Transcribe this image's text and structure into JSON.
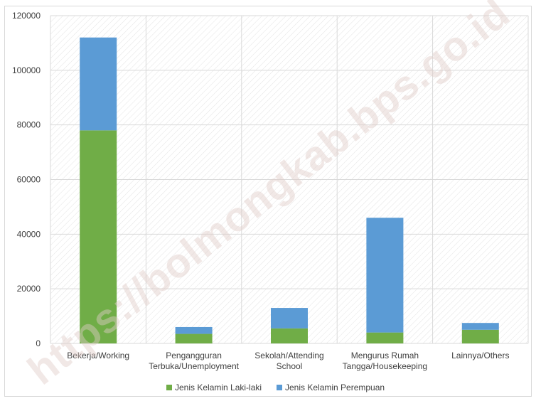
{
  "watermark": "https://bolmongkab.bps.go.id",
  "colors": {
    "male": "#70AD47",
    "female": "#5B9BD5",
    "grid": "#d9d9d9"
  },
  "chart_data": {
    "type": "bar",
    "stacked": true,
    "categories": [
      [
        "Bekerja/Working"
      ],
      [
        "Pengangguran",
        "Terbuka/Unemployment"
      ],
      [
        "Sekolah/Attending",
        "School"
      ],
      [
        "Mengurus Rumah",
        "Tangga/Housekeeping"
      ],
      [
        "Lainnya/Others"
      ]
    ],
    "series": [
      {
        "name": "Jenis Kelamin Laki-laki",
        "color": "#70AD47",
        "values": [
          78000,
          3500,
          5500,
          4000,
          5000
        ]
      },
      {
        "name": "Jenis Kelamin Perempuan",
        "color": "#5B9BD5",
        "values": [
          34000,
          2500,
          7500,
          42000,
          2500
        ]
      }
    ],
    "ylim": [
      0,
      120000
    ],
    "yticks": [
      0,
      20000,
      40000,
      60000,
      80000,
      100000,
      120000
    ],
    "grid": true,
    "legend_position": "bottom"
  }
}
